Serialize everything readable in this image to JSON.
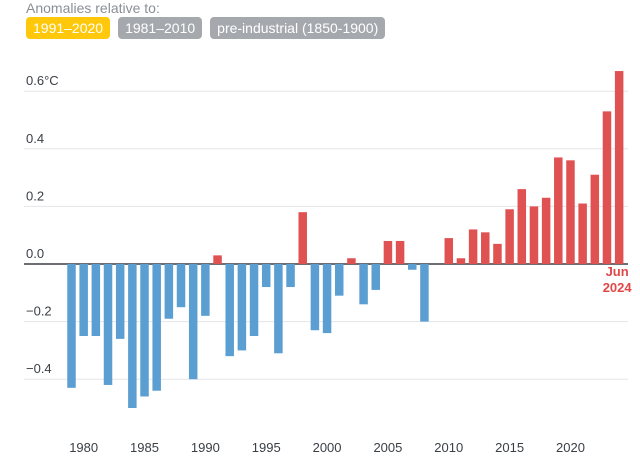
{
  "header": {
    "label": "Anomalies relative to:",
    "baselines": [
      {
        "label": "1991–2020",
        "active": true
      },
      {
        "label": "1981–2010",
        "active": false
      },
      {
        "label": "pre-industrial (1850-1900)",
        "active": false
      }
    ]
  },
  "colors": {
    "negative": "#5b9fd2",
    "positive": "#e05252",
    "active_pill": "#ffc80a",
    "inactive_pill": "#a5a9ae",
    "grid": "#e3e5e8",
    "axis": "#3a3f45",
    "latest_label": "#e04848"
  },
  "chart_data": {
    "type": "bar",
    "title": "",
    "xlabel": "",
    "ylabel": "",
    "ylim": [
      -0.6,
      0.7
    ],
    "y_ticks": [
      {
        "value": 0.6,
        "label": "0.6°C"
      },
      {
        "value": 0.4,
        "label": "0.4"
      },
      {
        "value": 0.2,
        "label": "0.2"
      },
      {
        "value": 0.0,
        "label": "0.0"
      },
      {
        "value": -0.2,
        "label": "−0.2"
      },
      {
        "value": -0.4,
        "label": "−0.4"
      }
    ],
    "x_ticks": [
      1980,
      1985,
      1990,
      1995,
      2000,
      2005,
      2010,
      2015,
      2020
    ],
    "x_tick_labels": [
      "1980",
      "1985",
      "1990",
      "1995",
      "2000",
      "2005",
      "2010",
      "2015",
      "2020"
    ],
    "x_range": [
      1979,
      2024
    ],
    "categories": [
      1979,
      1980,
      1981,
      1982,
      1983,
      1984,
      1985,
      1986,
      1987,
      1988,
      1989,
      1990,
      1991,
      1992,
      1993,
      1994,
      1995,
      1996,
      1997,
      1998,
      1999,
      2000,
      2001,
      2002,
      2003,
      2004,
      2005,
      2006,
      2007,
      2008,
      2009,
      2010,
      2011,
      2012,
      2013,
      2014,
      2015,
      2016,
      2017,
      2018,
      2019,
      2020,
      2021,
      2022,
      2023,
      2024
    ],
    "values": [
      -0.43,
      -0.25,
      -0.25,
      -0.42,
      -0.26,
      -0.5,
      -0.46,
      -0.44,
      -0.19,
      -0.15,
      -0.4,
      -0.18,
      0.03,
      -0.32,
      -0.3,
      -0.25,
      -0.08,
      -0.31,
      -0.08,
      0.18,
      -0.23,
      -0.24,
      -0.11,
      0.02,
      -0.14,
      -0.09,
      0.08,
      0.08,
      -0.02,
      -0.2,
      0.0,
      0.09,
      0.02,
      0.12,
      0.11,
      0.07,
      0.19,
      0.26,
      0.2,
      0.23,
      0.37,
      0.36,
      0.21,
      0.31,
      0.53,
      0.67
    ],
    "latest_label": [
      "Jun",
      "2024"
    ]
  }
}
